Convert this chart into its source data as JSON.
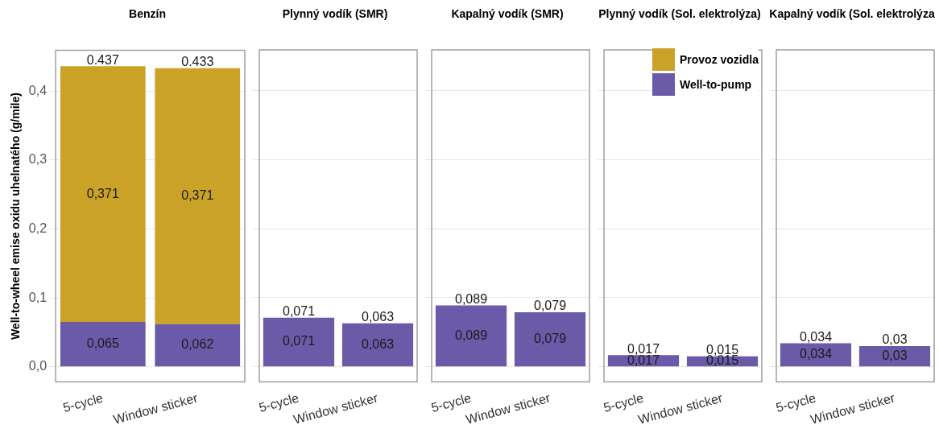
{
  "chart_data": [
    {
      "type": "bar",
      "title": "Benzín",
      "ylabel": "Well-to-wheel emise oxidu uhelnatého (g/mile)",
      "categories": [
        "5-cycle",
        "Window sticker"
      ],
      "stacked": true,
      "ylim": [
        -0.022,
        0.459
      ],
      "yticks": [
        {
          "value": 0,
          "label": "0,0"
        },
        {
          "value": 0.1,
          "label": "0,1"
        },
        {
          "value": 0.2,
          "label": "0,2"
        },
        {
          "value": 0.3,
          "label": "0,3"
        },
        {
          "value": 0.4,
          "label": "0,4"
        }
      ],
      "grid": "y",
      "totals": [
        "0.437",
        "0.433"
      ],
      "series": [
        {
          "color": "#6a5aa8",
          "values": [
            0.065,
            0.062
          ],
          "value_labels": [
            "0,065",
            "0,062"
          ]
        },
        {
          "color": "#c9a227",
          "values": [
            0.371,
            0.371
          ],
          "value_labels": [
            "0,371",
            "0,371"
          ]
        }
      ]
    },
    {
      "type": "bar",
      "title": "Plynný vodík (SMR)",
      "categories": [
        "5-cycle",
        "Window sticker"
      ],
      "stacked": true,
      "ylim": [
        -0.022,
        0.459
      ],
      "yticks": [
        0,
        0.1,
        0.2,
        0.3,
        0.4
      ],
      "grid": "y",
      "tick_labels": "x",
      "totals": [
        "0,071",
        "0,063"
      ],
      "series": [
        {
          "color": "#6a5aa8",
          "values": [
            0.071,
            0.063
          ],
          "value_labels": [
            "0,071",
            "0,063"
          ]
        }
      ]
    },
    {
      "type": "bar",
      "title": "Kapalný vodík (SMR)",
      "categories": [
        "5-cycle",
        "Window sticker"
      ],
      "stacked": true,
      "ylim": [
        -0.022,
        0.459
      ],
      "yticks": [
        0,
        0.1,
        0.2,
        0.3,
        0.4
      ],
      "grid": "y",
      "tick_labels": "x",
      "totals": [
        "0,089",
        "0,079"
      ],
      "series": [
        {
          "color": "#6a5aa8",
          "values": [
            0.089,
            0.079
          ],
          "value_labels": [
            "0,089",
            "0,079"
          ]
        }
      ]
    },
    {
      "type": "bar",
      "title": "Plynný vodík (Sol. elektrolýza)",
      "categories": [
        "5-cycle",
        "Window sticker"
      ],
      "stacked": true,
      "ylim": [
        -0.022,
        0.459
      ],
      "yticks": [
        0,
        0.1,
        0.2,
        0.3,
        0.4
      ],
      "grid": "y",
      "tick_labels": "x",
      "legend": "top right",
      "totals": [
        "0,017",
        "0,015"
      ],
      "series": [
        {
          "name": "Well-to-pump",
          "color": "#6a5aa8",
          "values": [
            0.017,
            0.015
          ],
          "value_labels": [
            "0,017",
            "0,015"
          ]
        },
        {
          "name": "Provoz vozidla",
          "color": "#c9a227",
          "values": [
            0,
            0
          ]
        }
      ]
    },
    {
      "type": "bar",
      "title": "Kapalný vodík (Sol. elektrolýza",
      "categories": [
        "5-cycle",
        "Window sticker"
      ],
      "stacked": true,
      "ylim": [
        -0.022,
        0.459
      ],
      "yticks": [
        0,
        0.1,
        0.2,
        0.3,
        0.4
      ],
      "grid": "y",
      "tick_labels": "x",
      "totals": [
        "0,034",
        "0,03"
      ],
      "series": [
        {
          "color": "#6a5aa8",
          "values": [
            0.034,
            0.03
          ],
          "value_labels": [
            "0,034",
            "0,03"
          ]
        }
      ]
    }
  ]
}
